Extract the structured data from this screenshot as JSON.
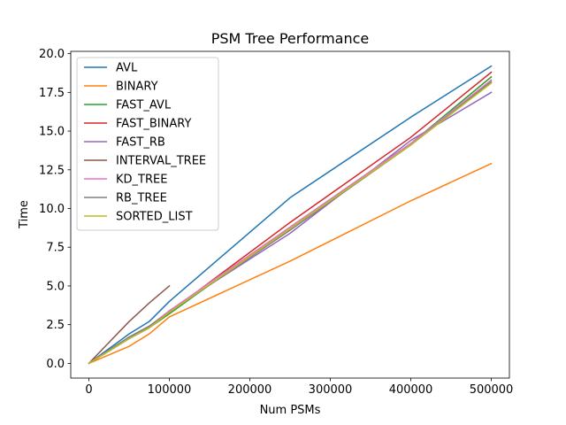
{
  "chart_data": {
    "type": "line",
    "title": "PSM Tree Performance",
    "xlabel": "Num PSMs",
    "ylabel": "Time",
    "xlim": [
      -22500,
      522500
    ],
    "ylim": [
      -0.95,
      20.15
    ],
    "x_ticks": [
      0,
      100000,
      200000,
      300000,
      400000,
      500000
    ],
    "y_ticks": [
      0.0,
      2.5,
      5.0,
      7.5,
      10.0,
      12.5,
      15.0,
      17.5,
      20.0
    ],
    "x_tick_labels": [
      "0",
      "100000",
      "200000",
      "300000",
      "400000",
      "500000"
    ],
    "y_tick_labels": [
      "0.0",
      "2.5",
      "5.0",
      "7.5",
      "10.0",
      "12.5",
      "15.0",
      "17.5",
      "20.0"
    ],
    "grid": false,
    "legend_position": "top-left",
    "series": [
      {
        "name": "AVL",
        "color": "#1f77b4",
        "x": [
          0,
          50000,
          75000,
          100000,
          250000,
          400000,
          500000
        ],
        "y": [
          0.0,
          1.9,
          2.7,
          4.0,
          10.7,
          15.9,
          19.2
        ]
      },
      {
        "name": "BINARY",
        "color": "#ff7f0e",
        "x": [
          0,
          50000,
          75000,
          100000,
          250000,
          400000,
          500000
        ],
        "y": [
          0.0,
          1.1,
          1.9,
          3.0,
          6.6,
          10.5,
          12.9
        ]
      },
      {
        "name": "FAST_AVL",
        "color": "#2ca02c",
        "x": [
          0,
          50000,
          75000,
          100000,
          250000,
          400000,
          500000
        ],
        "y": [
          0.0,
          1.6,
          2.3,
          3.2,
          8.8,
          14.2,
          18.5
        ]
      },
      {
        "name": "FAST_BINARY",
        "color": "#d62728",
        "x": [
          0,
          50000,
          75000,
          100000,
          250000,
          400000,
          500000
        ],
        "y": [
          0.0,
          1.6,
          2.3,
          3.3,
          9.1,
          14.6,
          18.8
        ]
      },
      {
        "name": "FAST_RB",
        "color": "#9467bd",
        "x": [
          0,
          50000,
          75000,
          100000,
          250000,
          400000,
          500000
        ],
        "y": [
          0.0,
          1.6,
          2.3,
          3.4,
          8.4,
          14.4,
          17.5
        ]
      },
      {
        "name": "INTERVAL_TREE",
        "color": "#8c564b",
        "x": [
          0,
          50000,
          75000,
          100000
        ],
        "y": [
          0.0,
          2.7,
          3.9,
          5.0
        ]
      },
      {
        "name": "KD_TREE",
        "color": "#e377c2",
        "x": [
          0,
          50000,
          75000,
          100000,
          250000,
          400000,
          500000
        ],
        "y": [
          0.0,
          1.7,
          2.4,
          3.4,
          8.8,
          14.2,
          18.3
        ]
      },
      {
        "name": "RB_TREE",
        "color": "#7f7f7f",
        "x": [
          0,
          50000,
          75000,
          100000,
          250000,
          400000,
          500000
        ],
        "y": [
          0.0,
          1.7,
          2.4,
          3.3,
          8.6,
          14.1,
          18.2
        ]
      },
      {
        "name": "SORTED_LIST",
        "color": "#bcbd22",
        "x": [
          0,
          50000,
          75000,
          100000,
          250000,
          400000,
          500000
        ],
        "y": [
          0.0,
          1.6,
          2.3,
          3.3,
          8.7,
          14.1,
          18.1
        ]
      }
    ]
  }
}
